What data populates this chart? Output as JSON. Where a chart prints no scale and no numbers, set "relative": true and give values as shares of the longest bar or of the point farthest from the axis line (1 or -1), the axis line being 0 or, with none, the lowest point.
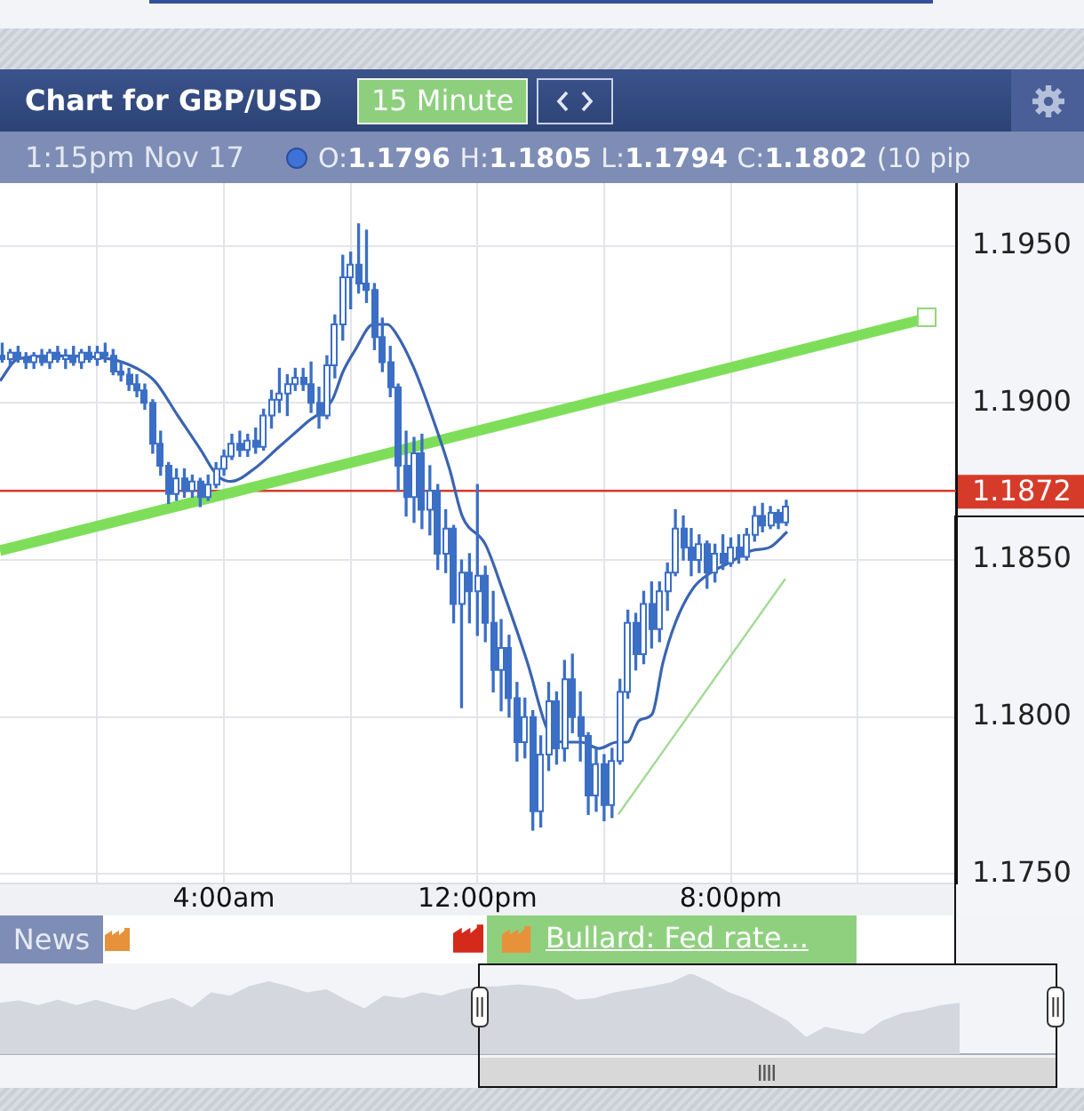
{
  "chart_data": [
    {
      "type": "candlestick",
      "title": "Chart for GBP/USD",
      "annotations": [
        "15 Minute",
        "1:15pm Nov 17",
        "O:1.1796 H:1.1805 L:1.1794 C:1.1802 (10 pip",
        "News",
        "Bullard: Fed rate..."
      ],
      "color": "#3b6fc6",
      "colors": [
        "#3b6fc6",
        "#ffffff",
        "#3b6fc6",
        "#3b6fc6",
        "#ffffff",
        "#3b6fc6",
        "#ffffff",
        "#3b6fc6",
        "#ffffff",
        "#3b6fc6",
        "#ffffff",
        "#3b6fc6",
        "#ffffff",
        "#3b6fc6",
        "#3b6fc6",
        "#3b6fc6",
        "#3b6fc6",
        "#3b6fc6",
        "#3b6fc6",
        "#3b6fc6",
        "#3b6fc6",
        "#3b6fc6",
        "#ffffff",
        "#3b6fc6",
        "#ffffff",
        "#3b6fc6",
        "#ffffff",
        "#ffffff",
        "#ffffff",
        "#ffffff",
        "#3b6fc6",
        "#ffffff",
        "#3b6fc6",
        "#ffffff",
        "#ffffff",
        "#ffffff",
        "#ffffff",
        "#ffffff",
        "#3b6fc6",
        "#3b6fc6",
        "#3b6fc6",
        "#ffffff",
        "#ffffff",
        "#ffffff",
        "#ffffff",
        "#3b6fc6",
        "#3b6fc6",
        "#3b6fc6",
        "#3b6fc6",
        "#3b6fc6",
        "#3b6fc6",
        "#3b6fc6",
        "#ffffff",
        "#3b6fc6",
        "#ffffff",
        "#3b6fc6",
        "#ffffff",
        "#3b6fc6",
        "#ffffff",
        "#3b6fc6",
        "#ffffff",
        "#3b6fc6",
        "#3b6fc6",
        "#ffffff",
        "#3b6fc6",
        "#3b6fc6",
        "#ffffff",
        "#3b6fc6",
        "#ffffff",
        "#ffffff",
        "#3b6fc6",
        "#ffffff",
        "#3b6fc6",
        "#3b6fc6",
        "#3b6fc6",
        "#ffffff",
        "#3b6fc6",
        "#ffffff",
        "#ffffff",
        "#ffffff",
        "#3b6fc6",
        "#ffffff",
        "#3b6fc6",
        "#ffffff",
        "#ffffff",
        "#ffffff",
        "#3b6fc6",
        "#3b6fc6",
        "#ffffff",
        "#3b6fc6",
        "#ffffff",
        "#3b6fc6",
        "#ffffff",
        "#3b6fc6",
        "#ffffff",
        "#ffffff",
        "#3b6fc6",
        "#ffffff",
        "#3b6fc6",
        "#ffffff"
      ],
      "x": [
        -3,
        -2.75,
        -2.5,
        -2.25,
        -2,
        -1.75,
        -1.5,
        -1.25,
        -1,
        -0.75,
        -0.5,
        -0.25,
        0,
        0.25,
        0.5,
        0.75,
        1,
        1.25,
        1.5,
        1.75,
        2,
        2.25,
        2.5,
        2.75,
        3,
        3.25,
        3.5,
        3.75,
        4,
        4.25,
        4.5,
        4.75,
        5,
        5.25,
        5.5,
        5.75,
        6,
        6.25,
        6.5,
        6.75,
        7,
        7.25,
        7.5,
        7.75,
        8,
        8.25,
        8.5,
        8.75,
        9,
        9.25,
        9.5,
        9.75,
        10,
        10.25,
        10.5,
        10.75,
        11,
        11.25,
        11.5,
        11.75,
        12,
        12.25,
        12.5,
        12.75,
        13,
        13.25,
        13.5,
        13.75,
        14,
        14.25,
        14.5,
        14.75,
        15,
        15.25,
        15.5,
        15.75,
        16,
        16.25,
        16.5,
        16.75,
        17,
        17.25,
        17.5,
        17.75,
        18,
        18.25,
        18.5,
        18.75,
        19,
        19.25,
        19.5,
        19.75,
        20,
        20.25,
        20.5,
        20.75,
        21,
        21.25,
        21.5,
        21.75
      ],
      "ohlc": [
        [
          1.1915,
          1.1919,
          1.1913,
          1.1914
        ],
        [
          1.1914,
          1.1917,
          1.1912,
          1.1916
        ],
        [
          1.1916,
          1.1918,
          1.1913,
          1.1914
        ],
        [
          1.1914,
          1.1916,
          1.1911,
          1.1913
        ],
        [
          1.1913,
          1.1916,
          1.1911,
          1.1915
        ],
        [
          1.1915,
          1.1917,
          1.1912,
          1.1913
        ],
        [
          1.1913,
          1.1917,
          1.1911,
          1.1916
        ],
        [
          1.1916,
          1.1918,
          1.1913,
          1.1914
        ],
        [
          1.1914,
          1.1917,
          1.1911,
          1.1915
        ],
        [
          1.1915,
          1.1918,
          1.1912,
          1.1913
        ],
        [
          1.1913,
          1.1917,
          1.1911,
          1.1916
        ],
        [
          1.1916,
          1.1918,
          1.1913,
          1.1914
        ],
        [
          1.1914,
          1.1918,
          1.1912,
          1.1916
        ],
        [
          1.1916,
          1.1919,
          1.1913,
          1.1915
        ],
        [
          1.1915,
          1.1917,
          1.1909,
          1.191
        ],
        [
          1.191,
          1.1913,
          1.1907,
          1.1909
        ],
        [
          1.1909,
          1.1911,
          1.1904,
          1.1906
        ],
        [
          1.1906,
          1.1909,
          1.1902,
          1.1904
        ],
        [
          1.1904,
          1.1906,
          1.1898,
          1.19
        ],
        [
          1.19,
          1.1901,
          1.1884,
          1.1887
        ],
        [
          1.1887,
          1.1891,
          1.1877,
          1.188
        ],
        [
          1.188,
          1.1881,
          1.1868,
          1.1871
        ],
        [
          1.1871,
          1.1879,
          1.1869,
          1.1876
        ],
        [
          1.1876,
          1.1879,
          1.187,
          1.1872
        ],
        [
          1.1872,
          1.1877,
          1.187,
          1.1875
        ],
        [
          1.1875,
          1.1876,
          1.1867,
          1.187
        ],
        [
          1.187,
          1.1877,
          1.1869,
          1.1874
        ],
        [
          1.1874,
          1.1881,
          1.1873,
          1.1879
        ],
        [
          1.1879,
          1.1885,
          1.1877,
          1.1883
        ],
        [
          1.1883,
          1.189,
          1.1882,
          1.1887
        ],
        [
          1.1887,
          1.1891,
          1.1883,
          1.1885
        ],
        [
          1.1885,
          1.189,
          1.1883,
          1.1888
        ],
        [
          1.1888,
          1.1892,
          1.1884,
          1.1886
        ],
        [
          1.1886,
          1.1898,
          1.1885,
          1.1896
        ],
        [
          1.1896,
          1.1904,
          1.1892,
          1.1901
        ],
        [
          1.1901,
          1.1911,
          1.1897,
          1.1903
        ],
        [
          1.1903,
          1.1909,
          1.1896,
          1.1906
        ],
        [
          1.1906,
          1.1911,
          1.1904,
          1.1908
        ],
        [
          1.1908,
          1.1911,
          1.1904,
          1.1906
        ],
        [
          1.1906,
          1.1913,
          1.1897,
          1.19
        ],
        [
          1.19,
          1.1905,
          1.1892,
          1.1896
        ],
        [
          1.1896,
          1.1915,
          1.1895,
          1.1912
        ],
        [
          1.1912,
          1.1928,
          1.1908,
          1.1925
        ],
        [
          1.1925,
          1.1947,
          1.192,
          1.194
        ],
        [
          1.194,
          1.1948,
          1.193,
          1.1944
        ],
        [
          1.1944,
          1.1957,
          1.1935,
          1.1938
        ],
        [
          1.1938,
          1.1955,
          1.1932,
          1.1936
        ],
        [
          1.1936,
          1.1938,
          1.1917,
          1.1921
        ],
        [
          1.1921,
          1.1927,
          1.191,
          1.1913
        ],
        [
          1.1913,
          1.1918,
          1.1902,
          1.1905
        ],
        [
          1.1905,
          1.1906,
          1.1872,
          1.188
        ],
        [
          1.188,
          1.1891,
          1.1864,
          1.187
        ],
        [
          1.187,
          1.1889,
          1.1862,
          1.1884
        ],
        [
          1.1884,
          1.189,
          1.186,
          1.1866
        ],
        [
          1.1866,
          1.188,
          1.1858,
          1.1872
        ],
        [
          1.1872,
          1.1874,
          1.1847,
          1.1852
        ],
        [
          1.1852,
          1.1866,
          1.1846,
          1.186
        ],
        [
          1.186,
          1.1861,
          1.183,
          1.1836
        ],
        [
          1.1836,
          1.185,
          1.1803,
          1.1846
        ],
        [
          1.1846,
          1.1852,
          1.183,
          1.184
        ],
        [
          1.184,
          1.1874,
          1.1826,
          1.1845
        ],
        [
          1.1845,
          1.1848,
          1.1824,
          1.183
        ],
        [
          1.183,
          1.184,
          1.1808,
          1.1815
        ],
        [
          1.1815,
          1.1831,
          1.1802,
          1.1822
        ],
        [
          1.1822,
          1.1826,
          1.18,
          1.1806
        ],
        [
          1.1806,
          1.1811,
          1.1786,
          1.1792
        ],
        [
          1.1792,
          1.1806,
          1.1787,
          1.18
        ],
        [
          1.18,
          1.1802,
          1.1764,
          1.177
        ],
        [
          1.177,
          1.1794,
          1.1765,
          1.1788
        ],
        [
          1.1788,
          1.1811,
          1.1783,
          1.1805
        ],
        [
          1.1805,
          1.1808,
          1.1785,
          1.179
        ],
        [
          1.179,
          1.1818,
          1.1786,
          1.1812
        ],
        [
          1.1812,
          1.182,
          1.1795,
          1.18
        ],
        [
          1.18,
          1.1808,
          1.1786,
          1.1794
        ],
        [
          1.1794,
          1.1795,
          1.1769,
          1.1775
        ],
        [
          1.1775,
          1.179,
          1.177,
          1.1785
        ],
        [
          1.1785,
          1.1788,
          1.1767,
          1.1772
        ],
        [
          1.1772,
          1.179,
          1.1768,
          1.1786
        ],
        [
          1.1786,
          1.1812,
          1.1785,
          1.1808
        ],
        [
          1.1808,
          1.1834,
          1.1806,
          1.183
        ],
        [
          1.183,
          1.1833,
          1.1815,
          1.182
        ],
        [
          1.182,
          1.184,
          1.1817,
          1.1836
        ],
        [
          1.1836,
          1.1843,
          1.1822,
          1.1828
        ],
        [
          1.1828,
          1.1843,
          1.1824,
          1.184
        ],
        [
          1.184,
          1.1849,
          1.1834,
          1.1846
        ],
        [
          1.1846,
          1.1866,
          1.1845,
          1.186
        ],
        [
          1.186,
          1.1864,
          1.185,
          1.1854
        ],
        [
          1.1854,
          1.186,
          1.1845,
          1.185
        ],
        [
          1.185,
          1.1858,
          1.1846,
          1.1855
        ],
        [
          1.1855,
          1.1856,
          1.1841,
          1.1846
        ],
        [
          1.1846,
          1.1855,
          1.1843,
          1.1852
        ],
        [
          1.1852,
          1.1858,
          1.1847,
          1.1849
        ],
        [
          1.1849,
          1.1857,
          1.1848,
          1.1854
        ],
        [
          1.1854,
          1.1858,
          1.1849,
          1.1851
        ],
        [
          1.1851,
          1.186,
          1.185,
          1.1858
        ],
        [
          1.1858,
          1.1867,
          1.1856,
          1.1864
        ],
        [
          1.1864,
          1.1868,
          1.1859,
          1.1861
        ],
        [
          1.1861,
          1.1867,
          1.186,
          1.1865
        ],
        [
          1.1865,
          1.1866,
          1.186,
          1.1862
        ],
        [
          1.1862,
          1.1869,
          1.1861,
          1.1867
        ]
      ],
      "series": [
        {
          "type": "line",
          "color": "#3a64b0",
          "x": [
            -3.07,
            -2.51,
            -1.22,
            0.41,
            1.25,
            1.81,
            2.54,
            3.27,
            3.78,
            4.22,
            4.95,
            5.74,
            6.64,
            7.42,
            7.76,
            8.15,
            8.71,
            9.16,
            9.44,
            10,
            10.56,
            11.12,
            11.52,
            12.25,
            12.81,
            13.59,
            14.21,
            14.71,
            15.27,
            15.84,
            16.4,
            16.73,
            17.12,
            17.52,
            17.85,
            18.25,
            18.81,
            19.37,
            19.93,
            20.66,
            21.22,
            21.78
          ],
          "values": [
            1.1907,
            1.1914,
            1.1915,
            1.1914,
            1.1911,
            1.1907,
            1.1896,
            1.1885,
            1.1877,
            1.1875,
            1.1879,
            1.1886,
            1.1894,
            1.1901,
            1.191,
            1.1917,
            1.1925,
            1.1925,
            1.1922,
            1.1911,
            1.1896,
            1.1879,
            1.1864,
            1.1855,
            1.184,
            1.1817,
            1.1796,
            1.1792,
            1.1792,
            1.179,
            1.1792,
            1.1792,
            1.1799,
            1.1801,
            1.1817,
            1.183,
            1.1841,
            1.1846,
            1.1849,
            1.1853,
            1.1854,
            1.1859
          ]
        },
        {
          "type": "line",
          "color": "#7ede5a",
          "x": [
            -3.07,
            26.21
          ],
          "values": [
            1.1853,
            1.1927
          ]
        },
        {
          "type": "line",
          "color": "#a3d995",
          "x": [
            16.45,
            21.72
          ],
          "values": [
            1.1769,
            1.1844
          ]
        }
      ],
      "xlim": [
        -3.07,
        27.11
      ],
      "xticks": [
        {
          "value": 0,
          "label": null
        },
        {
          "value": 4,
          "label": "4:00am"
        },
        {
          "value": 8,
          "label": null
        },
        {
          "value": 12,
          "label": "12:00pm"
        },
        {
          "value": 16,
          "label": null
        },
        {
          "value": 20,
          "label": "8:00pm"
        },
        {
          "value": 24,
          "label": null
        }
      ],
      "ylim": [
        1.1747,
        1.197
      ],
      "yticks": [
        {
          "value": 1.175,
          "label": "1.1750"
        },
        {
          "value": 1.18,
          "label": "1.1800"
        },
        {
          "value": 1.185,
          "label": "1.1850"
        },
        {
          "value": 1.19,
          "label": "1.1900"
        },
        {
          "value": 1.195,
          "label": "1.1950"
        }
      ],
      "ref_lines": [
        {
          "axis": "y",
          "value": 1.1872,
          "label": "1.1872",
          "color": "#d63b2a"
        }
      ],
      "grid": true
    },
    {
      "type": "area",
      "relative": true,
      "color": "#d5d7df",
      "categories": [
        null,
        null,
        null,
        null,
        null,
        null,
        null,
        null,
        null,
        null,
        null,
        null,
        null,
        null,
        null,
        null,
        null,
        null,
        null,
        null,
        null,
        null,
        null,
        null,
        null,
        null,
        null,
        null,
        null,
        null,
        null,
        null,
        null,
        null,
        null,
        null,
        null,
        null,
        null,
        null,
        null,
        null,
        null,
        null,
        null,
        null,
        null,
        null,
        null,
        null,
        null,
        null,
        null,
        null,
        null,
        null
      ],
      "values": [
        0.63,
        0.66,
        0.6,
        0.67,
        0.6,
        0.67,
        0.6,
        0.54,
        0.63,
        0.69,
        0.57,
        0.76,
        0.72,
        0.84,
        0.9,
        0.84,
        0.76,
        0.8,
        0.67,
        0.56,
        0.72,
        0.69,
        0.76,
        0.72,
        0.8,
        0.83,
        0.84,
        0.86,
        0.84,
        0.8,
        0.67,
        0.69,
        0.76,
        0.8,
        0.84,
        0.89,
        1,
        0.89,
        0.76,
        0.67,
        0.54,
        0.41,
        0.2,
        0.33,
        0.28,
        0.24,
        0.41,
        0.5,
        0.54,
        0.6,
        0.63,
        null,
        null,
        null,
        null,
        null
      ]
    }
  ]
}
